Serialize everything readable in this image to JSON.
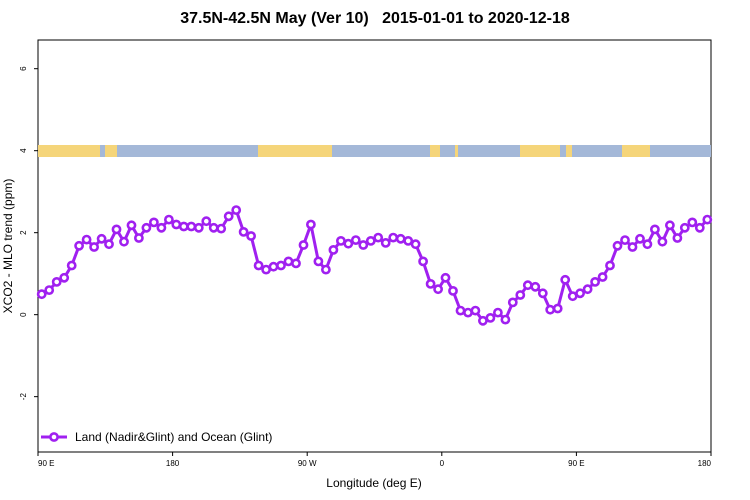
{
  "chart_data": {
    "type": "line",
    "title": {
      "region": "37.5N-42.5N May (Ver 10)",
      "date_range": "2015-01-01 to 2020-12-18"
    },
    "xlabel": "Longitude (deg E)",
    "ylabel": "XCO2 - MLO trend (ppm)",
    "x_ticks": [
      {
        "value": 90,
        "label": "90 E"
      },
      {
        "value": 180,
        "label": "180"
      },
      {
        "value": 270,
        "label": "90 W"
      },
      {
        "value": 360,
        "label": "0"
      },
      {
        "value": 450,
        "label": "90 E"
      },
      {
        "value": 540,
        "label": "180"
      }
    ],
    "y_ticks": [
      {
        "value": -2,
        "label": "-2"
      },
      {
        "value": 0,
        "label": "0"
      },
      {
        "value": 2,
        "label": "2"
      },
      {
        "value": 4,
        "label": "4"
      },
      {
        "value": 6,
        "label": "6"
      }
    ],
    "xlim": [
      90,
      540
    ],
    "ylim": [
      -3.35,
      6.7
    ],
    "grid": false,
    "legend_position": "bottom-left",
    "series": [
      {
        "name": "Land (Nadir&Glint) and Ocean (Glint)",
        "color": "#a020f0",
        "x": [
          92.5,
          97.5,
          102.5,
          107.5,
          112.5,
          117.5,
          122.5,
          127.5,
          132.5,
          137.5,
          142.5,
          147.5,
          152.5,
          157.5,
          162.5,
          167.5,
          172.5,
          177.5,
          182.5,
          187.5,
          192.5,
          197.5,
          202.5,
          207.5,
          212.5,
          217.5,
          222.5,
          227.5,
          232.5,
          237.5,
          242.5,
          247.5,
          252.5,
          257.5,
          262.5,
          267.5,
          272.5,
          277.5,
          282.5,
          287.5,
          292.5,
          297.5,
          302.5,
          307.5,
          312.5,
          317.5,
          322.5,
          327.5,
          332.5,
          337.5,
          342.5,
          347.5,
          352.5,
          357.5,
          362.5,
          367.5,
          372.5,
          377.5,
          382.5,
          387.5,
          392.5,
          397.5,
          402.5,
          407.5,
          412.5,
          417.5,
          422.5,
          427.5,
          432.5,
          437.5,
          442.5,
          447.5,
          452.5,
          457.5,
          462.5,
          467.5,
          472.5,
          477.5,
          482.5,
          487.5,
          492.5,
          497.5,
          502.5,
          507.5,
          512.5,
          517.5,
          522.5,
          527.5,
          532.5,
          537.5
        ],
        "y": [
          0.5,
          0.6,
          0.8,
          0.9,
          1.2,
          1.68,
          1.83,
          1.65,
          1.85,
          1.72,
          2.08,
          1.78,
          2.18,
          1.87,
          2.12,
          2.25,
          2.12,
          2.32,
          2.2,
          2.15,
          2.15,
          2.12,
          2.28,
          2.12,
          2.1,
          2.4,
          2.55,
          2.02,
          1.92,
          1.2,
          1.1,
          1.17,
          1.2,
          1.3,
          1.25,
          1.7,
          2.2,
          1.3,
          1.1,
          1.58,
          1.8,
          1.73,
          1.82,
          1.7,
          1.8,
          1.88,
          1.75,
          1.88,
          1.85,
          1.8,
          1.72,
          1.3,
          0.75,
          0.62,
          0.9,
          0.58,
          0.1,
          0.05,
          0.1,
          -0.15,
          -0.08,
          0.05,
          -0.12,
          0.3,
          0.48,
          0.72,
          0.68,
          0.52,
          0.12,
          0.15,
          0.85,
          0.45,
          0.52,
          0.62,
          0.8,
          0.92,
          1.2,
          1.68,
          1.82,
          1.65,
          1.85,
          1.72,
          2.08,
          1.78,
          2.18,
          1.87,
          2.12,
          2.25,
          2.12,
          2.32
        ]
      }
    ],
    "colors": {
      "land_band": "#f5d57a",
      "ocean_band": "#a4b8d8",
      "series": "#a020f0"
    }
  }
}
